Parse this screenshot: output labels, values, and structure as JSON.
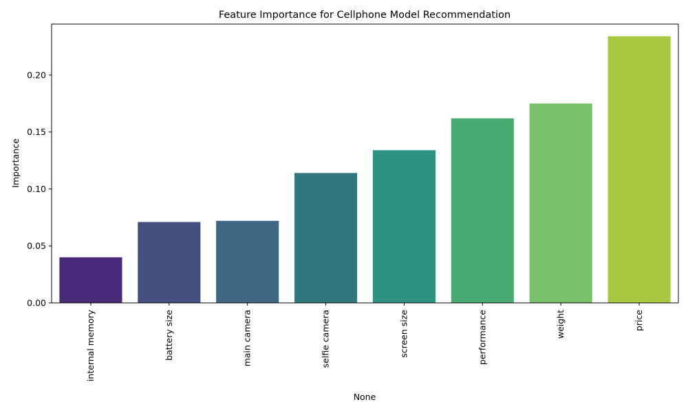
{
  "chart_data": {
    "type": "bar",
    "title": "Feature Importance for Cellphone Model Recommendation",
    "xlabel": "None",
    "ylabel": "Importance",
    "categories": [
      "internal memory",
      "battery size",
      "main camera",
      "selfie camera",
      "screen size",
      "performance",
      "weight",
      "price"
    ],
    "values": [
      0.04,
      0.071,
      0.072,
      0.114,
      0.134,
      0.162,
      0.175,
      0.234
    ],
    "colors": [
      "#482878",
      "#46507e",
      "#3e6582",
      "#32777e",
      "#2e9282",
      "#48ab72",
      "#79c16a",
      "#a9c841"
    ],
    "ylim": [
      0,
      0.2447
    ],
    "yticks": [
      0.0,
      0.05,
      0.1,
      0.15,
      0.2
    ],
    "ytick_labels": [
      "0.00",
      "0.05",
      "0.10",
      "0.15",
      "0.20"
    ],
    "grid": false,
    "legend": "none"
  }
}
